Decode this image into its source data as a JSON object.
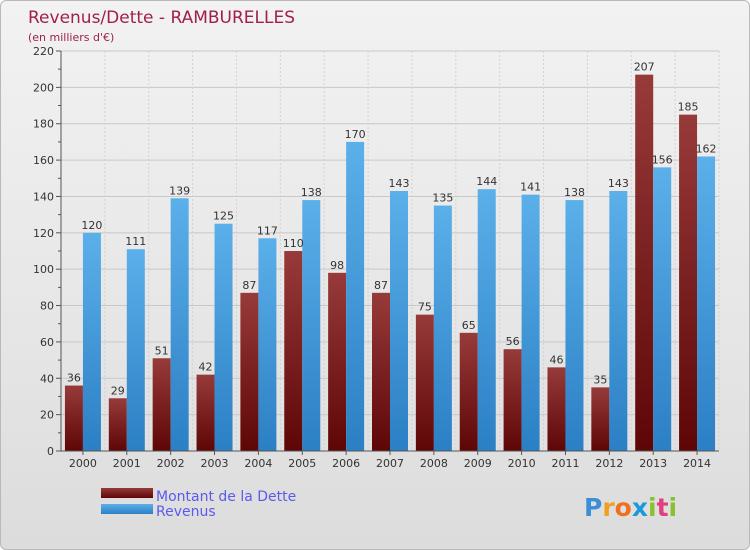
{
  "colors": {
    "title": "#a0204a",
    "dette": "#7a1a1a",
    "revenus": "#3d9ad8",
    "legend_text": "#5a5aee"
  },
  "chart_data": {
    "type": "bar",
    "title": "Revenus/Dette - RAMBURELLES",
    "subtitle": "(en milliers d'€)",
    "categories": [
      "2000",
      "2001",
      "2002",
      "2003",
      "2004",
      "2005",
      "2006",
      "2007",
      "2008",
      "2009",
      "2010",
      "2011",
      "2012",
      "2013",
      "2014"
    ],
    "series": [
      {
        "name": "Montant de la Dette",
        "values": [
          36,
          29,
          51,
          42,
          87,
          110,
          98,
          87,
          75,
          65,
          56,
          46,
          35,
          207,
          185
        ]
      },
      {
        "name": "Revenus",
        "values": [
          120,
          111,
          139,
          125,
          117,
          138,
          170,
          143,
          135,
          144,
          141,
          138,
          143,
          156,
          162
        ]
      }
    ],
    "ylim": [
      0,
      220
    ],
    "yticks": [
      0,
      20,
      40,
      60,
      80,
      100,
      120,
      140,
      160,
      180,
      200,
      220
    ],
    "grid": true,
    "legend_position": "bottom-left"
  },
  "logo": {
    "text": "Proxiti",
    "letters": [
      "P",
      "r",
      "o",
      "x",
      "i",
      "t",
      "i"
    ]
  }
}
